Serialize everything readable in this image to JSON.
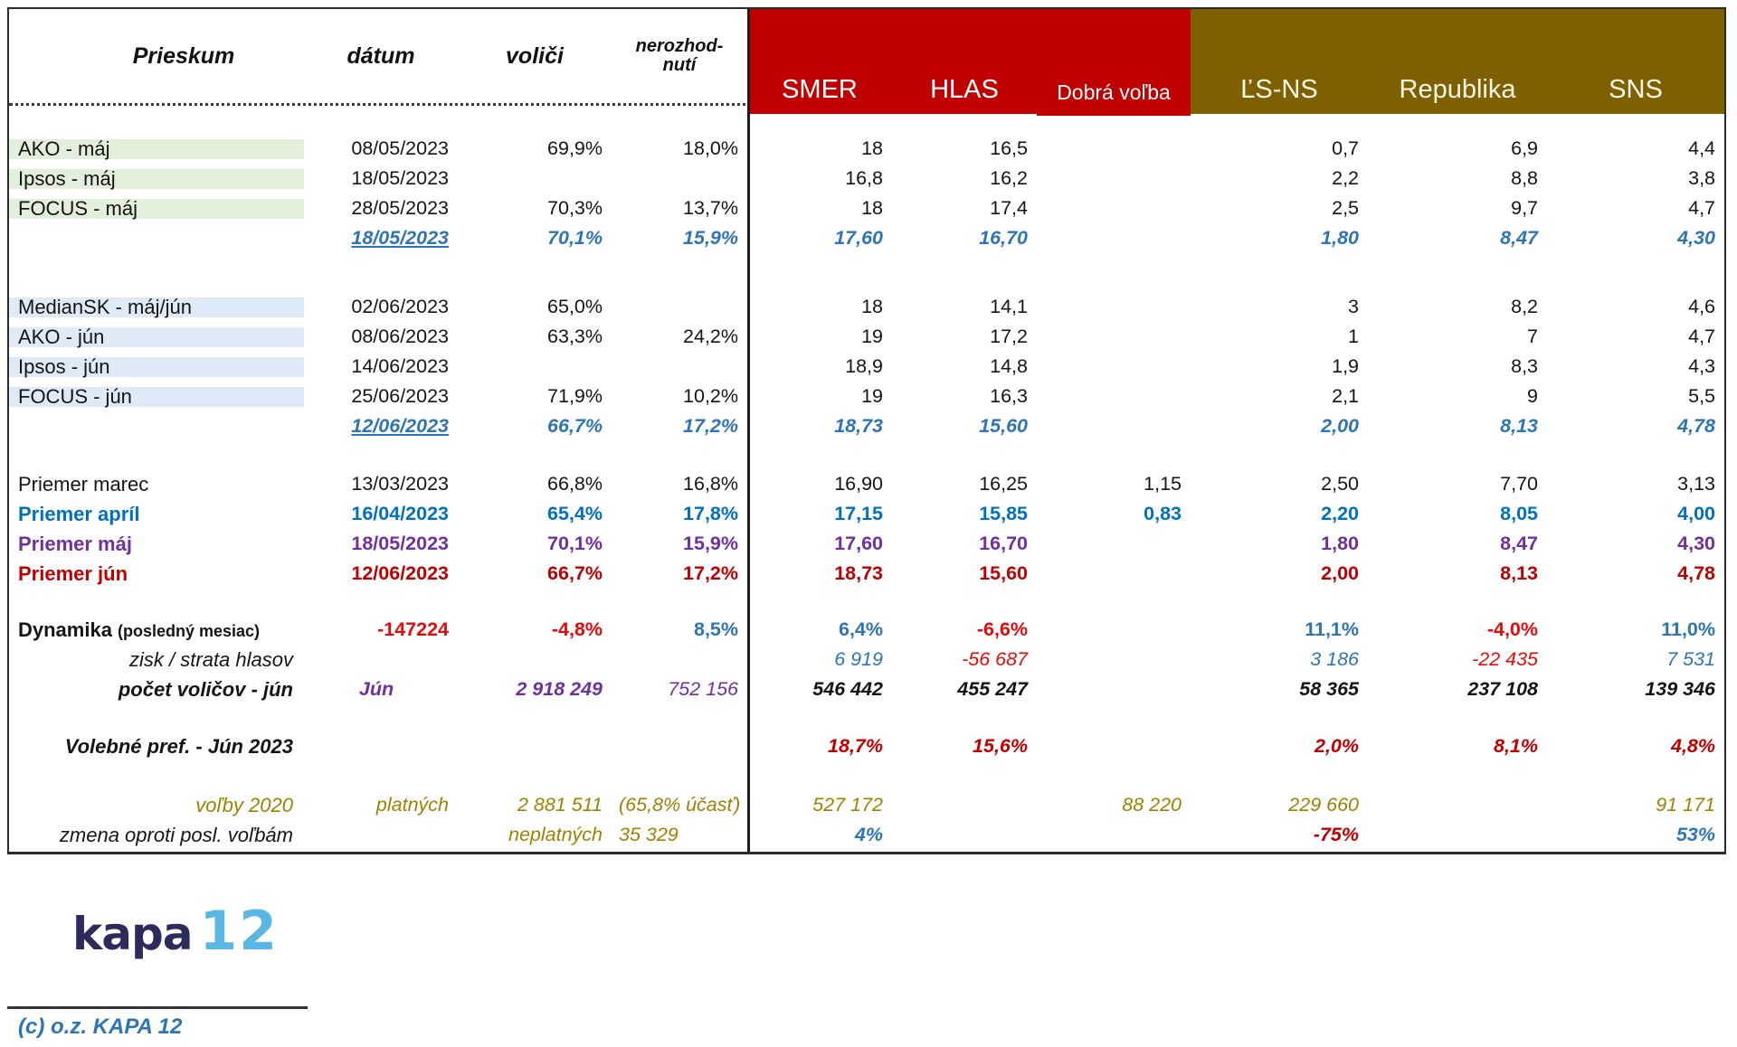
{
  "colors": {
    "red_header": "#C00000",
    "olive_header": "#7F6000",
    "shade_green": "#E2EFDA",
    "shade_blue": "#DEEAF6",
    "text_blue": "#2E75B6",
    "bold_blue": "#0070C0",
    "purple": "#7030A0",
    "dark_red": "#C00000",
    "bright_red": "#E80A0A",
    "olive_text": "#A08000",
    "logo_navy": "#2B2B5E",
    "logo_blue": "#58B7E5",
    "border_dark": "#2B2B2B"
  },
  "chart_data": {
    "type": "table",
    "columns": [
      {
        "key": "prieskum",
        "label": "Prieskum",
        "section": "left"
      },
      {
        "key": "datum",
        "label": "dátum",
        "section": "left"
      },
      {
        "key": "volici",
        "label": "voliči",
        "section": "left"
      },
      {
        "key": "nerozhodnuti",
        "label": "nerozhod-\nnutí",
        "section": "left",
        "small": true
      },
      {
        "key": "smer",
        "label": "SMER",
        "section": "red"
      },
      {
        "key": "hlas",
        "label": "HLAS",
        "section": "red"
      },
      {
        "key": "dobra_volba",
        "label": "Dobrá voľba",
        "section": "red",
        "small": true
      },
      {
        "key": "lsns",
        "label": "ĽS-NS",
        "section": "olive"
      },
      {
        "key": "republika",
        "label": "Republika",
        "section": "olive"
      },
      {
        "key": "sns",
        "label": "SNS",
        "section": "olive"
      }
    ],
    "groups": [
      {
        "rows": [
          {
            "name": "ako-maj",
            "label": "AKO - máj",
            "shade": "green",
            "cells": [
              "08/05/2023",
              "69,9%",
              "18,0%",
              "18",
              "16,5",
              "",
              "0,7",
              "6,9",
              "4,4"
            ]
          },
          {
            "name": "ipsos-maj",
            "label": "Ipsos - máj",
            "shade": "green",
            "cells": [
              "18/05/2023",
              "",
              "",
              "16,8",
              "16,2",
              "",
              "2,2",
              "8,8",
              "3,8"
            ]
          },
          {
            "name": "focus-maj",
            "label": "FOCUS - máj",
            "shade": "green",
            "cells": [
              "28/05/2023",
              "70,3%",
              "13,7%",
              "18",
              "17,4",
              "",
              "2,5",
              "9,7",
              "4,7"
            ]
          },
          {
            "name": "priemer-maj-sum",
            "label": "",
            "rcls": "it sem blue",
            "cells": [
              "18/05/2023",
              "70,1%",
              "15,9%",
              "17,60",
              "16,70",
              "",
              "1,80",
              "8,47",
              "4,30"
            ],
            "ccls": [
              "ul",
              "",
              "",
              "",
              "",
              "",
              "",
              "",
              ""
            ]
          }
        ]
      },
      {
        "rows": [
          {
            "name": "mediansk-maj-jun",
            "label": "MedianSK - máj/jún",
            "shade": "lblue",
            "cells": [
              "02/06/2023",
              "65,0%",
              "",
              "18",
              "14,1",
              "",
              "3",
              "8,2",
              "4,6"
            ]
          },
          {
            "name": "ako-jun",
            "label": "AKO - jún",
            "shade": "lblue",
            "cells": [
              "08/06/2023",
              "63,3%",
              "24,2%",
              "19",
              "17,2",
              "",
              "1",
              "7",
              "4,7"
            ]
          },
          {
            "name": "ipsos-jun",
            "label": "Ipsos - jún",
            "shade": "lblue",
            "cells": [
              "14/06/2023",
              "",
              "",
              "18,9",
              "14,8",
              "",
              "1,9",
              "8,3",
              "4,3"
            ]
          },
          {
            "name": "focus-jun",
            "label": "FOCUS - jún",
            "shade": "lblue",
            "cells": [
              "25/06/2023",
              "71,9%",
              "10,2%",
              "19",
              "16,3",
              "",
              "2,1",
              "9",
              "5,5"
            ]
          },
          {
            "name": "priemer-jun-sum",
            "label": "",
            "rcls": "it sem blue",
            "cells": [
              "12/06/2023",
              "66,7%",
              "17,2%",
              "18,73",
              "15,60",
              "",
              "2,00",
              "8,13",
              "4,78"
            ],
            "ccls": [
              "ul",
              "",
              "",
              "",
              "",
              "",
              "",
              "",
              ""
            ]
          }
        ]
      },
      {
        "rows": [
          {
            "name": "priemer-marec",
            "label": "Priemer marec",
            "cells": [
              "13/03/2023",
              "66,8%",
              "16,8%",
              "16,90",
              "16,25",
              "1,15",
              "2,50",
              "7,70",
              "3,13"
            ]
          },
          {
            "name": "priemer-april",
            "label": "Priemer apríl",
            "rcls": "bd bblue",
            "cells": [
              "16/04/2023",
              "65,4%",
              "17,8%",
              "17,15",
              "15,85",
              "0,83",
              "2,20",
              "8,05",
              "4,00"
            ]
          },
          {
            "name": "priemer-maj",
            "label": "Priemer máj",
            "rcls": "bd purple",
            "cells": [
              "18/05/2023",
              "70,1%",
              "15,9%",
              "17,60",
              "16,70",
              "",
              "1,80",
              "8,47",
              "4,30"
            ]
          },
          {
            "name": "priemer-jun",
            "label": "Priemer jún",
            "rcls": "bd dred",
            "cells": [
              "12/06/2023",
              "66,7%",
              "17,2%",
              "18,73",
              "15,60",
              "",
              "2,00",
              "8,13",
              "4,78"
            ]
          }
        ]
      },
      {
        "rows": [
          {
            "name": "dynamika",
            "label": "Dynamika",
            "label2": "(posledný mesiac)",
            "lcls": "bd black",
            "cells": [
              "-147224",
              "-4,8%",
              "8,5%",
              "6,4%",
              "-6,6%",
              "",
              "11,1%",
              "-4,0%",
              "11,0%"
            ],
            "ccls": [
              "red bd",
              "red bd",
              "blue bd",
              "blue sem",
              "red sem",
              "",
              "blue sem",
              "red sem",
              "blue sem"
            ]
          },
          {
            "name": "zisk-strata-hlasov",
            "label": "zisk / strata hlasov",
            "lcls": "it ral black",
            "cells": [
              "",
              "",
              "",
              "6 919",
              "-56 687",
              "",
              "3 186",
              "-22 435",
              "7 531"
            ],
            "ccls": [
              "",
              "",
              "",
              "blue it",
              "red it",
              "",
              "blue it",
              "red it",
              "blue it"
            ]
          },
          {
            "name": "pocet-volicov-jun",
            "label": "počet voličov - jún",
            "lcls": "bd it ral black",
            "cells": [
              "Jún",
              "2 918 249",
              "752 156",
              "546 442",
              "455 247",
              "",
              "58 365",
              "237 108",
              "139 346"
            ],
            "ccls": [
              "purple bd it ctr",
              "purple bd it",
              "purple it",
              "bd it",
              "bd it",
              "",
              "bd it",
              "bd it",
              "bd it"
            ]
          }
        ]
      },
      {
        "rows": [
          {
            "name": "volebne-pref-jun-2023",
            "label": "Volebné pref. - Jún 2023",
            "lcls": "bd it ral black",
            "rcls": "bd it dred",
            "cells": [
              "",
              "",
              "",
              "18,7%",
              "15,6%",
              "",
              "2,0%",
              "8,1%",
              "4,8%"
            ]
          }
        ]
      },
      {
        "rows": [
          {
            "name": "volby-2020",
            "label": "voľby 2020",
            "lcls": "ral",
            "rcls": "it olive",
            "cells": [
              "platných",
              "2 881 511",
              "(65,8% účasť)",
              "527 172",
              "",
              "88 220",
              "229 660",
              "",
              "91 171"
            ],
            "ccls": [
              "",
              "",
              "lal",
              "",
              "",
              "",
              "",
              "",
              ""
            ]
          },
          {
            "name": "zmena-oproti-posl-volbam",
            "label": "zmena oproti posl. voľbám",
            "lcls": "ral black",
            "rcls": "it",
            "cells": [
              "",
              "neplatných",
              "35 329",
              "4%",
              "",
              "",
              "-75%",
              "",
              "53%"
            ],
            "ccls": [
              "",
              "olive",
              "olive lal",
              "blue bd",
              "",
              "",
              "dred bd",
              "",
              "blue bd"
            ]
          }
        ]
      }
    ]
  },
  "footer": {
    "logo_text_kapa": "kapa",
    "logo_text_12": "12",
    "copyright": "(c) o.z. KAPA 12"
  }
}
